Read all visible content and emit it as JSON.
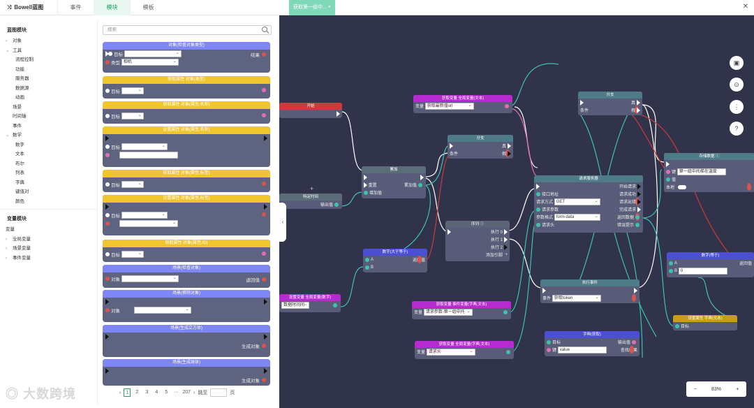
{
  "header": {
    "brand": "Bowell蓝图",
    "tabs": [
      "事件",
      "模块",
      "模板"
    ],
    "active_tab": 1
  },
  "left_tree": {
    "section1": "蓝图模块",
    "items": [
      {
        "label": "对象",
        "level": 1,
        "arrow": "›"
      },
      {
        "label": "工具",
        "level": 1,
        "arrow": "⌄"
      },
      {
        "label": "流程控制",
        "level": 2
      },
      {
        "label": "功能",
        "level": 2
      },
      {
        "label": "服务器",
        "level": 2
      },
      {
        "label": "数据源",
        "level": 2
      },
      {
        "label": "动画",
        "level": 2
      },
      {
        "label": "场景",
        "level": 1
      },
      {
        "label": "时间轴",
        "level": 1
      },
      {
        "label": "事件",
        "level": 1
      },
      {
        "label": "数学",
        "level": 1,
        "arrow": "⌄"
      },
      {
        "label": "数字",
        "level": 2
      },
      {
        "label": "文本",
        "level": 2
      },
      {
        "label": "布尔",
        "level": 2
      },
      {
        "label": "列表",
        "level": 2
      },
      {
        "label": "字典",
        "level": 2
      },
      {
        "label": "键值对",
        "level": 2
      },
      {
        "label": "颜色",
        "level": 2
      }
    ],
    "section2": "变量模块",
    "var_root": "变量",
    "var_items": [
      "全局变量",
      "场景变量",
      "事件变量"
    ]
  },
  "search": {
    "placeholder": "搜索"
  },
  "blocks": [
    {
      "title": "对象(检查对象类型)",
      "color": "blue"
    },
    {
      "title": "获取属性 对象(类型)",
      "color": "yellow"
    },
    {
      "title": "获取属性 对象(属性,名称)",
      "color": "yellow"
    },
    {
      "title": "设置属性 对象(属性,名称)",
      "color": "yellow"
    },
    {
      "title": "获取属性 对象(属性,标签)",
      "color": "yellow"
    },
    {
      "title": "设置属性 对象(属性,标签)",
      "color": "yellow"
    },
    {
      "title": "获取属性 对象(属性,ID)",
      "color": "yellow"
    },
    {
      "title": "场景(检查对象)",
      "color": "blue"
    },
    {
      "title": "场景(移除对象)",
      "color": "blue"
    },
    {
      "title": "场景(生成立方体)",
      "color": "blue"
    },
    {
      "title": "场景(生成球体)",
      "color": "blue"
    }
  ],
  "block_labels": {
    "target": "目标",
    "type": "类型",
    "result": "结果",
    "camera": "相机",
    "object": "对象",
    "return": "返回值",
    "gen_obj": "生成对象"
  },
  "pager": {
    "pages": [
      "1",
      "2",
      "3",
      "4",
      "5",
      "···",
      "207"
    ],
    "current": "1",
    "goto": "跳至",
    "page_unit": "页"
  },
  "canvas": {
    "tab": "获取第一组中...",
    "zoom": "83%",
    "nodes": {
      "start": "开始",
      "fixed_time": "特定时间",
      "fixed_time_out": "输出值",
      "add": "累加",
      "reset": "重置",
      "add_in": "增加值",
      "add_out": "累加值",
      "get_var_url": "获取变量 全局变量(文本)",
      "var_label": "变量",
      "var_url_val": "获取最新值url",
      "branch1": "分支",
      "true_l": "真",
      "false_l": "假",
      "cond": "条件",
      "seq": "序列",
      "exec0": "执行 0",
      "exec1": "执行 1",
      "exec2": "执行 2",
      "add_pin": "添加引脚",
      "num_gt": "数字(大于等于)",
      "a": "A",
      "b": "B",
      "ret": "返回值",
      "get_var_num": "设置变量 全局变量(数字)",
      "var_num_val": "数据时间间",
      "http": "请求服务器",
      "api": "接口地址",
      "method": "请求方式",
      "method_val": "GET",
      "params": "请求参数",
      "ptype": "参数格式",
      "ptype_val": "form-data",
      "headers": "请求头",
      "start_req": "开始请求",
      "req_ok": "请求成功",
      "req_fail": "请求出错",
      "req_done": "完成请求",
      "ret_data": "返回数据",
      "err_tip": "错误提示",
      "branch2": "分支",
      "store": "存储数据",
      "key": "键",
      "key_val": "第一组中托梯在温度",
      "value": "值",
      "local": "本地",
      "exec_event": "执行事件",
      "event": "事件",
      "event_val": "获取token",
      "get_event_var": "获取变量 事件变量(字典,文本)",
      "ev_var_val": "请求参数-第一组中托",
      "get_global_dict": "获取变量 全局变量(字典,文本)",
      "gd_val": "请求头",
      "dict_get": "字典(获取)",
      "target": "目标",
      "output": "输出值",
      "find_result": "查找结果",
      "key_value": "value",
      "num_eq": "数字(等于)",
      "num_eq_b": "0",
      "set_attr": "设置属性 字典(文本)"
    }
  },
  "watermark": "大数跨境"
}
